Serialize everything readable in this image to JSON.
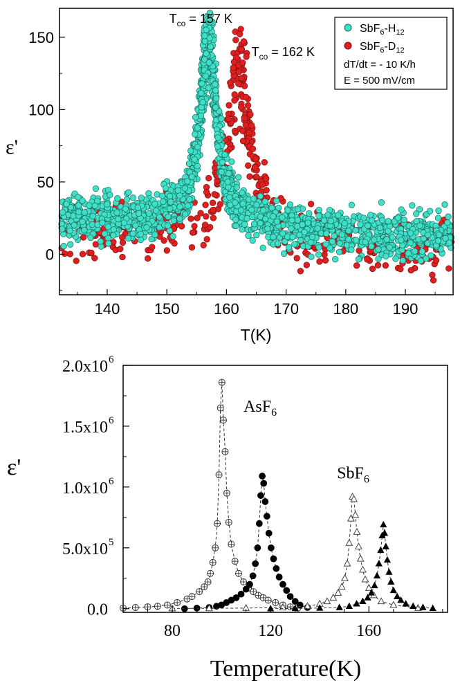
{
  "chart_data": [
    {
      "type": "scatter",
      "panel": "top",
      "xlabel": "T(K)",
      "ylabel": "ε'",
      "xlim": [
        132,
        198
      ],
      "ylim": [
        -28,
        170
      ],
      "xticks": [
        140,
        150,
        160,
        170,
        180,
        190
      ],
      "yticks": [
        0,
        50,
        100,
        150
      ],
      "grid": false,
      "legend_position": "top-right",
      "series": [
        {
          "name": "SbF6-H12",
          "legend_main": "SbF",
          "legend_sub1": "6",
          "legend_mid": "-H",
          "legend_sub2": "12",
          "color": "#40e0c8",
          "peak_x": 157,
          "peak_y": 150,
          "peak_width": 1.6,
          "background": 25
        },
        {
          "name": "SbF6-D12",
          "legend_main": "SbF",
          "legend_sub1": "6",
          "legend_mid": "-D",
          "legend_sub2": "12",
          "color": "#e02020",
          "peak_x": 162,
          "peak_y": 128,
          "peak_width": 2.2,
          "background": 15
        }
      ],
      "legend_notes": [
        "dT/dt = - 10 K/h",
        "E = 500 mV/cm"
      ],
      "annotations": [
        {
          "main": "T",
          "sub": "co",
          "rest": " = 157 K",
          "x": 150.4,
          "y": 160
        },
        {
          "main": "T",
          "sub": "co",
          "rest": " = 162 K",
          "x": 164.2,
          "y": 137
        }
      ]
    },
    {
      "type": "line",
      "panel": "bottom",
      "xlabel": "Temperature(K)",
      "ylabel": "ε'",
      "xlim": [
        60,
        192
      ],
      "ylim": [
        -30000,
        2000000
      ],
      "xticks": [
        80,
        120,
        160
      ],
      "yticks": [
        {
          "value": 0,
          "label": "0.0"
        },
        {
          "value": 500000,
          "label": "5.0x10",
          "exp": "5"
        },
        {
          "value": 1000000,
          "label": "1.0x10",
          "exp": "6"
        },
        {
          "value": 1500000,
          "label": "1.5x10",
          "exp": "6"
        },
        {
          "value": 2000000,
          "label": "2.0x10",
          "exp": "6"
        }
      ],
      "grid": false,
      "series": [
        {
          "name": "AsF6 (crossed circles)",
          "marker": "crossed-circle",
          "x": [
            60,
            65,
            70,
            74,
            78,
            82,
            86,
            88,
            91,
            93,
            94.5,
            95.5,
            96.5,
            97.5,
            98.3,
            99,
            99.6,
            100.2,
            100.8,
            101.5,
            102.2,
            103,
            104,
            105.5,
            107,
            109,
            111,
            113,
            115,
            117,
            119,
            122,
            125,
            128,
            131
          ],
          "y": [
            5000,
            10000,
            15000,
            20000,
            30000,
            50000,
            80000,
            100000,
            140000,
            180000,
            220000,
            290000,
            380000,
            500000,
            700000,
            1100000,
            1650000,
            1860000,
            1550000,
            1290000,
            950000,
            710000,
            530000,
            390000,
            290000,
            220000,
            170000,
            140000,
            110000,
            90000,
            70000,
            50000,
            30000,
            15000,
            5000
          ]
        },
        {
          "name": "AsF6 (filled circles)",
          "marker": "filled-circle",
          "x": [
            85,
            90,
            95,
            98,
            100,
            102,
            104,
            106,
            108,
            110,
            111.5,
            112.8,
            113.8,
            114.7,
            115.4,
            116,
            116.6,
            117.2,
            117.8,
            118.5,
            119.3,
            120.2,
            121.2,
            122.3,
            123.5,
            125,
            126.5,
            128,
            130,
            132,
            135
          ],
          "y": [
            0,
            5000,
            10000,
            20000,
            30000,
            50000,
            70000,
            90000,
            120000,
            160000,
            200000,
            270000,
            370000,
            500000,
            700000,
            930000,
            1090000,
            1030000,
            880000,
            760000,
            620000,
            500000,
            410000,
            330000,
            260000,
            200000,
            150000,
            100000,
            60000,
            30000,
            10000
          ]
        },
        {
          "name": "SbF6 (open triangles)",
          "marker": "open-triangle",
          "x": [
            80,
            95,
            110,
            125,
            135,
            140,
            143,
            145.5,
            147.5,
            149,
            150.2,
            151.2,
            152,
            152.7,
            153.3,
            153.9,
            154.5,
            155.1,
            155.8,
            156.6,
            157.5,
            158.5,
            160,
            162,
            165,
            170,
            180
          ],
          "y": [
            2000,
            3000,
            5000,
            10000,
            20000,
            40000,
            60000,
            90000,
            130000,
            180000,
            250000,
            370000,
            540000,
            740000,
            920000,
            900000,
            770000,
            630000,
            510000,
            410000,
            320000,
            240000,
            170000,
            110000,
            60000,
            30000,
            5000
          ]
        },
        {
          "name": "SbF6 (filled triangles)",
          "marker": "filled-triangle",
          "x": [
            120,
            130,
            140,
            148,
            152,
            155,
            157.5,
            159.5,
            161,
            162.3,
            163.3,
            164.1,
            164.8,
            165.4,
            165.9,
            166.4,
            166.9,
            167.5,
            168.2,
            169,
            170,
            171.5,
            173,
            175,
            178,
            182,
            186
          ],
          "y": [
            0,
            2000,
            5000,
            10000,
            20000,
            40000,
            60000,
            90000,
            130000,
            190000,
            270000,
            370000,
            480000,
            600000,
            690000,
            620000,
            510000,
            400000,
            300000,
            220000,
            150000,
            100000,
            70000,
            40000,
            20000,
            10000,
            3000
          ]
        }
      ],
      "annotations": [
        {
          "main": "AsF",
          "sub": "6",
          "x": 109,
          "y": 1620000
        },
        {
          "main": "SbF",
          "sub": "6",
          "x": 147,
          "y": 1070000
        }
      ]
    }
  ]
}
